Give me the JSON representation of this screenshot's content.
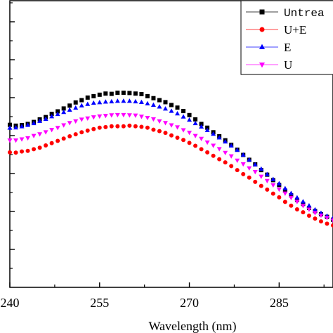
{
  "chart_data": {
    "type": "scatter",
    "xlabel": "Wavelength (nm)",
    "ylabel": "",
    "xlim": [
      240,
      294
    ],
    "ylim": [
      0,
      1
    ],
    "xticks": [
      240,
      255,
      270,
      285
    ],
    "grid": false,
    "legend_position": "top-right",
    "series": [
      {
        "name": "Untrea",
        "color": "#000000",
        "marker": "square",
        "x": [
          240,
          241,
          242,
          243,
          244,
          245,
          246,
          247,
          248,
          249,
          250,
          251,
          252,
          253,
          254,
          255,
          256,
          257,
          258,
          259,
          260,
          261,
          262,
          263,
          264,
          265,
          266,
          267,
          268,
          269,
          270,
          271,
          272,
          273,
          274,
          275,
          276,
          277,
          278,
          279,
          280,
          281,
          282,
          283,
          284,
          285,
          286,
          287,
          288,
          289,
          290,
          291,
          292,
          293,
          294
        ],
        "y": [
          0.567,
          0.564,
          0.566,
          0.57,
          0.577,
          0.586,
          0.594,
          0.605,
          0.614,
          0.624,
          0.634,
          0.645,
          0.653,
          0.662,
          0.667,
          0.672,
          0.676,
          0.675,
          0.679,
          0.679,
          0.678,
          0.676,
          0.674,
          0.667,
          0.66,
          0.653,
          0.646,
          0.636,
          0.627,
          0.615,
          0.601,
          0.586,
          0.57,
          0.557,
          0.541,
          0.527,
          0.513,
          0.497,
          0.48,
          0.462,
          0.445,
          0.429,
          0.409,
          0.393,
          0.374,
          0.357,
          0.337,
          0.321,
          0.305,
          0.291,
          0.277,
          0.266,
          0.255,
          0.246,
          0.236
        ]
      },
      {
        "name": "U+E",
        "color": "#ff0000",
        "marker": "circle",
        "x": [
          240,
          241,
          242,
          243,
          244,
          245,
          246,
          247,
          248,
          249,
          250,
          251,
          252,
          253,
          254,
          255,
          256,
          257,
          258,
          259,
          260,
          261,
          262,
          263,
          264,
          265,
          266,
          267,
          268,
          269,
          270,
          271,
          272,
          273,
          274,
          275,
          276,
          277,
          278,
          279,
          280,
          281,
          282,
          283,
          284,
          285,
          286,
          287,
          288,
          289,
          290,
          291,
          292,
          293,
          294
        ],
        "y": [
          0.471,
          0.47,
          0.474,
          0.476,
          0.482,
          0.487,
          0.495,
          0.503,
          0.511,
          0.519,
          0.527,
          0.534,
          0.541,
          0.547,
          0.552,
          0.557,
          0.559,
          0.562,
          0.562,
          0.562,
          0.564,
          0.562,
          0.56,
          0.557,
          0.55,
          0.545,
          0.539,
          0.53,
          0.522,
          0.514,
          0.504,
          0.494,
          0.482,
          0.471,
          0.459,
          0.447,
          0.436,
          0.423,
          0.409,
          0.395,
          0.383,
          0.368,
          0.354,
          0.341,
          0.327,
          0.314,
          0.298,
          0.285,
          0.272,
          0.262,
          0.25,
          0.24,
          0.23,
          0.222,
          0.216
        ]
      },
      {
        "name": "E",
        "color": "#0000ff",
        "marker": "triangle-up",
        "x": [
          240,
          241,
          242,
          243,
          244,
          245,
          246,
          247,
          248,
          249,
          250,
          251,
          252,
          253,
          254,
          255,
          256,
          257,
          258,
          259,
          260,
          261,
          262,
          263,
          264,
          265,
          266,
          267,
          268,
          269,
          270,
          271,
          272,
          273,
          274,
          275,
          276,
          277,
          278,
          279,
          280,
          281,
          282,
          283,
          284,
          285,
          286,
          287,
          288,
          289,
          290,
          291,
          292,
          293,
          294
        ],
        "y": [
          0.556,
          0.557,
          0.561,
          0.566,
          0.572,
          0.58,
          0.587,
          0.596,
          0.604,
          0.611,
          0.619,
          0.626,
          0.634,
          0.639,
          0.643,
          0.645,
          0.647,
          0.648,
          0.65,
          0.65,
          0.65,
          0.648,
          0.646,
          0.641,
          0.636,
          0.63,
          0.623,
          0.615,
          0.606,
          0.595,
          0.584,
          0.572,
          0.56,
          0.548,
          0.535,
          0.522,
          0.508,
          0.494,
          0.479,
          0.462,
          0.445,
          0.428,
          0.413,
          0.394,
          0.377,
          0.362,
          0.345,
          0.328,
          0.313,
          0.299,
          0.285,
          0.271,
          0.259,
          0.249,
          0.241
        ]
      },
      {
        "name": "U",
        "color": "#ff00ff",
        "marker": "triangle-down",
        "x": [
          240,
          241,
          242,
          243,
          244,
          245,
          246,
          247,
          248,
          249,
          250,
          251,
          252,
          253,
          254,
          255,
          256,
          257,
          258,
          259,
          260,
          261,
          262,
          263,
          264,
          265,
          266,
          267,
          268,
          269,
          270,
          271,
          272,
          273,
          274,
          275,
          276,
          277,
          278,
          279,
          280,
          281,
          282,
          283,
          284,
          285,
          286,
          287,
          288,
          289,
          290,
          291,
          292,
          293,
          294
        ],
        "y": [
          0.513,
          0.513,
          0.517,
          0.521,
          0.529,
          0.535,
          0.542,
          0.55,
          0.557,
          0.566,
          0.574,
          0.58,
          0.586,
          0.59,
          0.594,
          0.597,
          0.599,
          0.601,
          0.602,
          0.602,
          0.601,
          0.6,
          0.596,
          0.592,
          0.587,
          0.58,
          0.574,
          0.566,
          0.559,
          0.549,
          0.54,
          0.529,
          0.519,
          0.506,
          0.495,
          0.483,
          0.47,
          0.458,
          0.443,
          0.43,
          0.416,
          0.403,
          0.387,
          0.372,
          0.357,
          0.342,
          0.328,
          0.313,
          0.299,
          0.285,
          0.272,
          0.26,
          0.251,
          0.243,
          0.234
        ]
      }
    ]
  }
}
